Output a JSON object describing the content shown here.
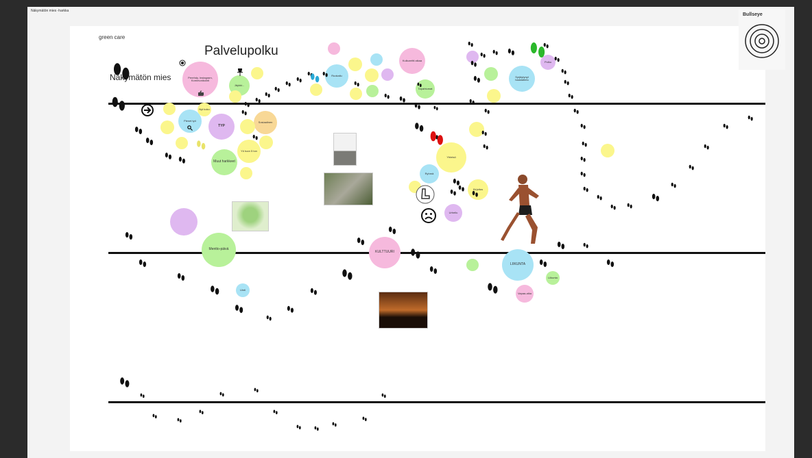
{
  "window": {
    "title": "Näkymätön mies -harkka"
  },
  "canvas": {
    "tag": "green care",
    "heading": "Palvelupolku",
    "subheading": "Näkymätön mies"
  },
  "bullseye": {
    "label": "Bullseye"
  },
  "bubbles": {
    "b1": "Perehdy, Instagram, Kommunikointi",
    "b2": "Nyt koko",
    "b3": "Jäykki...",
    "b4": "Pienet työ",
    "b5": "TYP",
    "b6": "Muut harkkeet",
    "b7": "Yö tuon 5 ton",
    "b8": "Mentto-päivä",
    "b9": "KULTTUURI",
    "b10": "LIIKUNTA",
    "b11": "Syrjäytynyt haastattelu",
    "b12": "Kulkureitti aikaa",
    "b13": "Ruokailu",
    "b14": "Yhteisö",
    "b15": "Ryhmä",
    "b16": "Kirjoitus",
    "b17": "Urheilu",
    "b18": "Vapaa-aika",
    "b19": "Liikunta",
    "b20": "Uinti",
    "b21": "Tapahtumat",
    "b22": "Sosiaalinen",
    "b23": "Polku"
  },
  "colors": {
    "pink": "#f6b9dd",
    "cyan": "#a8e3f5",
    "yellow": "#fbf68c",
    "green": "#b8f19a",
    "purple": "#dfb8f0",
    "orange": "#f8d896",
    "line": "#111111"
  },
  "icons": [
    "arrow-right-icon",
    "sad-face-icon",
    "search-icon",
    "pin-icon",
    "thumbs-up-icon",
    "boot-icon",
    "footprints-icon",
    "bullseye-icon",
    "runner-figure"
  ]
}
